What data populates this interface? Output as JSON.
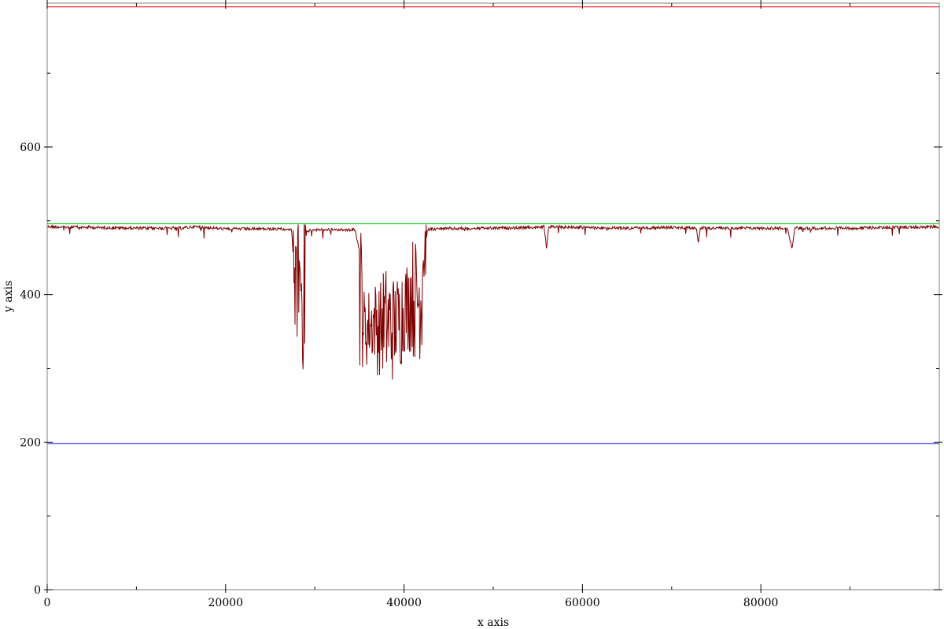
{
  "chart_data": {
    "type": "line",
    "title": "",
    "xlabel": "x axis",
    "ylabel": "y axis",
    "xlim": [
      0,
      100000
    ],
    "ylim": [
      0,
      795
    ],
    "grid": false,
    "x_ticks": [
      0,
      20000,
      40000,
      60000,
      80000
    ],
    "x_tick_labels": [
      "0",
      "20000",
      "40000",
      "60000",
      "80000"
    ],
    "x_minor_ticks": [
      10000,
      30000,
      50000,
      70000,
      90000
    ],
    "y_ticks": [
      0,
      200,
      400,
      600
    ],
    "y_tick_labels": [
      "0",
      "200",
      "400",
      "600"
    ],
    "y_minor_ticks": [
      100,
      300,
      500,
      700
    ],
    "series": [
      {
        "color": "#ff0000",
        "kind": "constant",
        "value": 790
      },
      {
        "color": "#00cc00",
        "kind": "constant",
        "value": 496
      },
      {
        "color": "#0000ff",
        "kind": "constant",
        "value": 198
      },
      {
        "color": "#7f0000",
        "kind": "noisy",
        "points": [
          [
            0,
            494
          ],
          [
            5000,
            493
          ],
          [
            10000,
            492
          ],
          [
            15000,
            492
          ],
          [
            16500,
            494
          ],
          [
            20000,
            491
          ],
          [
            25000,
            491
          ],
          [
            27400,
            491
          ],
          [
            27700,
            430
          ],
          [
            27900,
            350
          ],
          [
            28100,
            480
          ],
          [
            28300,
            380
          ],
          [
            28500,
            440
          ],
          [
            28700,
            312
          ],
          [
            28900,
            470
          ],
          [
            29100,
            488
          ],
          [
            30000,
            490
          ],
          [
            32000,
            490
          ],
          [
            34500,
            490
          ],
          [
            35000,
            460
          ],
          [
            35400,
            320
          ],
          [
            36000,
            370
          ],
          [
            36500,
            330
          ],
          [
            37000,
            380
          ],
          [
            37500,
            310
          ],
          [
            38000,
            400
          ],
          [
            38500,
            300
          ],
          [
            39000,
            390
          ],
          [
            39500,
            320
          ],
          [
            40000,
            410
          ],
          [
            40500,
            340
          ],
          [
            41000,
            440
          ],
          [
            41500,
            330
          ],
          [
            42000,
            445
          ],
          [
            42300,
            430
          ],
          [
            42600,
            490
          ],
          [
            43000,
            491
          ],
          [
            50000,
            492
          ],
          [
            55000,
            493
          ],
          [
            55700,
            494
          ],
          [
            56000,
            463
          ],
          [
            56200,
            494
          ],
          [
            60000,
            493
          ],
          [
            65000,
            492
          ],
          [
            70000,
            493
          ],
          [
            72800,
            492
          ],
          [
            73000,
            470
          ],
          [
            73200,
            492
          ],
          [
            78000,
            492
          ],
          [
            83000,
            492
          ],
          [
            83500,
            464
          ],
          [
            83800,
            492
          ],
          [
            90000,
            492
          ],
          [
            95000,
            493
          ],
          [
            100000,
            494
          ]
        ]
      }
    ]
  }
}
